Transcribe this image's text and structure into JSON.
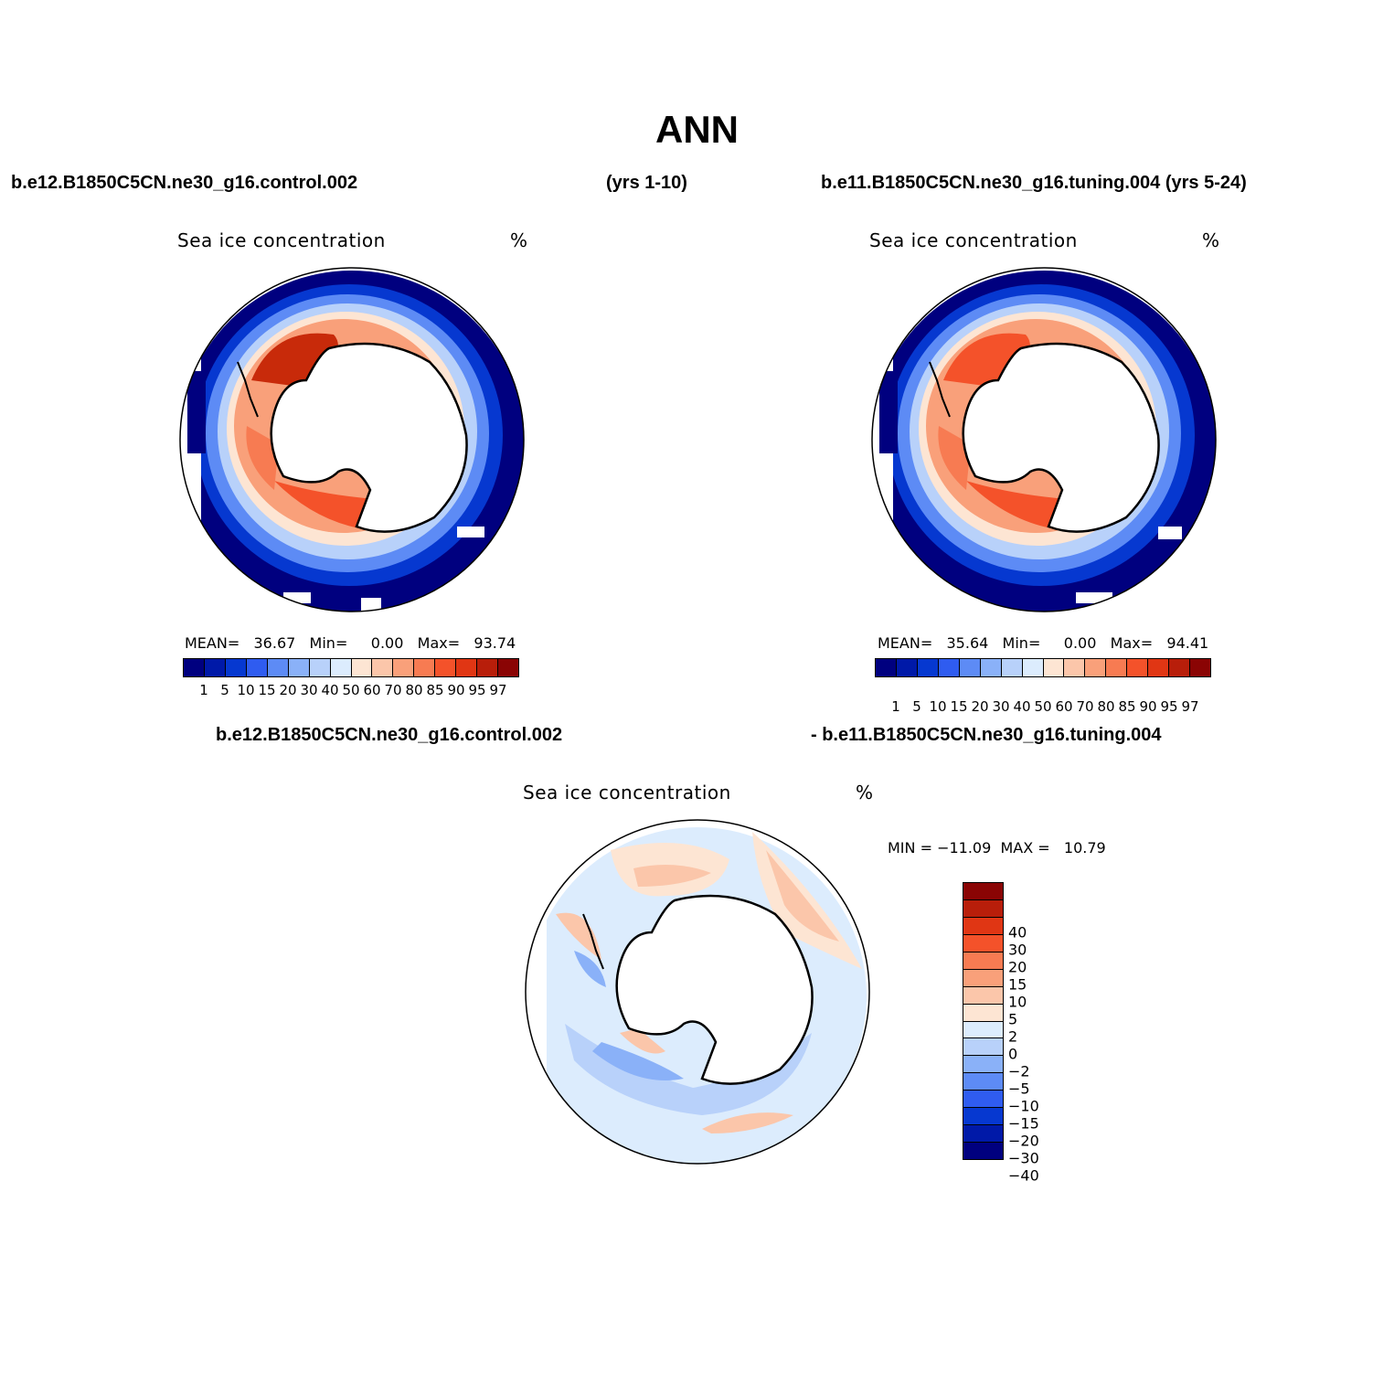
{
  "title": "ANN",
  "panel_top_left": {
    "case_label": "b.e12.B1850C5CN.ne30_g16.control.002",
    "years_label": "(yrs 1-10)",
    "variable": "Sea ice concentration",
    "units": "%",
    "stats": "MEAN=   36.67   Min=     0.00   Max=   93.74"
  },
  "panel_top_right": {
    "case_label": "b.e11.B1850C5CN.ne30_g16.tuning.004 (yrs 5-24)",
    "variable": "Sea ice concentration",
    "units": "%",
    "stats": "MEAN=   35.64   Min=     0.00   Max=   94.41"
  },
  "panel_bottom": {
    "case_label_left": "b.e12.B1850C5CN.ne30_g16.control.002",
    "case_label_right": "- b.e11.B1850C5CN.ne30_g16.tuning.004",
    "variable": "Sea ice concentration",
    "units": "%",
    "stats": "MIN = −11.09  MAX =   10.79"
  },
  "colorbar_concentration": {
    "colors": [
      "#00007f",
      "#0019a8",
      "#0638d0",
      "#2f5cf0",
      "#5d8bf5",
      "#8ab1f8",
      "#b8d1fa",
      "#dcecfd",
      "#fde5d3",
      "#fbc6aa",
      "#f9a07a",
      "#f77b52",
      "#f4522a",
      "#e03614",
      "#b81e0a",
      "#8a0404"
    ],
    "labels": [
      "1",
      "5",
      "10",
      "15",
      "20",
      "30",
      "40",
      "50",
      "60",
      "70",
      "80",
      "85",
      "90",
      "95",
      "97"
    ]
  },
  "colorbar_difference": {
    "colors": [
      "#8a0404",
      "#b81e0a",
      "#e03614",
      "#f4522a",
      "#f77b52",
      "#f9a07a",
      "#fbc6aa",
      "#fde5d3",
      "#dcecfd",
      "#b8d1fa",
      "#8ab1f8",
      "#5d8bf5",
      "#2f5cf0",
      "#0638d0",
      "#0019a8",
      "#00007f"
    ],
    "labels": [
      "40",
      "30",
      "20",
      "15",
      "10",
      "5",
      "2",
      "0",
      "−2",
      "−5",
      "−10",
      "−15",
      "−20",
      "−30",
      "−40"
    ]
  }
}
